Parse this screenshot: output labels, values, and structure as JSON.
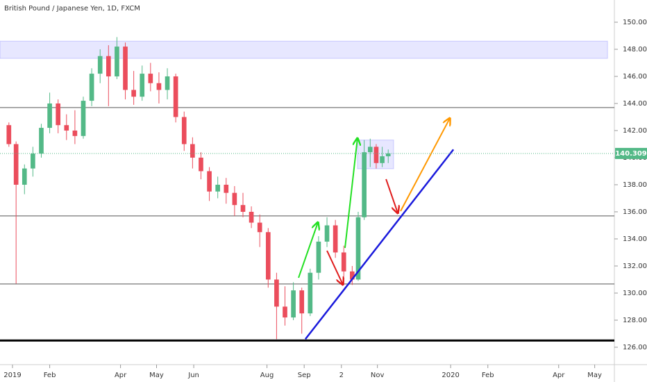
{
  "chart_data": {
    "type": "candlestick",
    "title": "British Pound / Japanese Yen, 1D, FXCM",
    "xlim": [
      -10.4,
      501.4
    ],
    "ylim": [
      124.87,
      151.64
    ],
    "xticks": [
      {
        "value": 0,
        "label": "2019"
      },
      {
        "value": 31,
        "label": "Feb"
      },
      {
        "value": 90,
        "label": "Apr"
      },
      {
        "value": 120,
        "label": "May"
      },
      {
        "value": 151,
        "label": "Jun"
      },
      {
        "value": 212,
        "label": "Aug"
      },
      {
        "value": 243,
        "label": "Sep"
      },
      {
        "value": 274,
        "label": "2"
      },
      {
        "value": 304,
        "label": "Nov"
      },
      {
        "value": 365,
        "label": "2020"
      },
      {
        "value": 396,
        "label": "Feb"
      },
      {
        "value": 455,
        "label": "Apr"
      },
      {
        "value": 485,
        "label": "May"
      }
    ],
    "yticks": [
      {
        "value": 126,
        "label": "126.000"
      },
      {
        "value": 128,
        "label": "128.000"
      },
      {
        "value": 130,
        "label": "130.000"
      },
      {
        "value": 132,
        "label": "132.000"
      },
      {
        "value": 134,
        "label": "134.000"
      },
      {
        "value": 136,
        "label": "136.000"
      },
      {
        "value": 138,
        "label": "138.000"
      },
      {
        "value": 140,
        "label": "140.000"
      },
      {
        "value": 142,
        "label": "142.000"
      },
      {
        "value": 144,
        "label": "144.000"
      },
      {
        "value": 146,
        "label": "146.000"
      },
      {
        "value": 148,
        "label": "148.000"
      },
      {
        "value": 150,
        "label": "150.000"
      }
    ],
    "up_color": "#53b987",
    "down_color": "#eb4d5c",
    "x": [
      -3,
      3,
      10,
      17,
      24,
      31,
      38,
      45,
      52,
      59,
      66,
      73,
      80,
      87,
      94,
      101,
      108,
      115,
      122,
      129,
      136,
      143,
      150,
      157,
      164,
      171,
      178,
      185,
      192,
      199,
      206,
      213,
      220,
      227,
      234,
      241,
      248,
      255,
      262,
      269,
      276,
      283,
      288,
      293,
      298,
      303,
      308,
      313
    ],
    "open": [
      142.4,
      141.0,
      138.0,
      139.2,
      140.3,
      142.2,
      144.0,
      142.4,
      142.0,
      141.6,
      144.2,
      146.2,
      147.5,
      146.0,
      148.2,
      145.0,
      144.5,
      146.2,
      145.5,
      145.0,
      146.0,
      143.0,
      141.0,
      140.0,
      139.0,
      137.5,
      138.0,
      137.4,
      136.5,
      136.0,
      135.2,
      134.5,
      131.0,
      129.0,
      128.2,
      130.2,
      128.5,
      131.5,
      133.8,
      135.0,
      133.0,
      131.6,
      131.0,
      135.6,
      140.4,
      140.8,
      139.6,
      140.1
    ],
    "high": [
      142.6,
      141.2,
      139.5,
      140.8,
      142.5,
      144.8,
      144.3,
      143.2,
      143.5,
      144.5,
      146.6,
      148.0,
      148.3,
      148.9,
      148.5,
      146.4,
      146.8,
      147.0,
      146.3,
      146.6,
      146.2,
      143.4,
      141.5,
      140.4,
      139.3,
      138.6,
      138.5,
      137.9,
      137.4,
      136.4,
      135.8,
      134.8,
      131.5,
      130.5,
      130.8,
      130.4,
      131.8,
      134.2,
      135.6,
      135.4,
      133.5,
      132.0,
      136.0,
      141.3,
      141.4,
      141.0,
      140.8,
      140.6
    ],
    "low": [
      140.8,
      130.7,
      137.3,
      138.6,
      140.0,
      141.8,
      141.8,
      141.3,
      141.0,
      141.4,
      143.8,
      145.5,
      143.8,
      145.8,
      144.3,
      143.9,
      144.2,
      144.9,
      144.0,
      144.3,
      142.6,
      140.5,
      139.2,
      138.4,
      136.8,
      137.0,
      136.6,
      135.7,
      135.6,
      134.8,
      133.4,
      130.4,
      126.6,
      127.6,
      128.0,
      127.0,
      128.3,
      131.0,
      133.4,
      132.6,
      131.2,
      130.6,
      130.9,
      135.4,
      139.3,
      139.2,
      139.3,
      139.6
    ],
    "close": [
      141.0,
      138.0,
      139.2,
      140.3,
      142.2,
      144.0,
      142.4,
      142.0,
      141.6,
      144.2,
      146.2,
      147.5,
      146.0,
      148.2,
      145.0,
      144.5,
      146.2,
      145.5,
      145.0,
      146.0,
      143.0,
      141.0,
      140.0,
      139.0,
      137.5,
      138.0,
      137.4,
      136.5,
      136.0,
      135.2,
      134.5,
      131.0,
      129.0,
      128.2,
      130.2,
      128.5,
      131.5,
      133.8,
      135.0,
      133.0,
      131.6,
      131.0,
      135.6,
      140.4,
      140.8,
      139.6,
      140.1,
      140.309
    ],
    "zones": [
      {
        "x": [
          -10.4,
          495.7
        ],
        "y": [
          147.33,
          148.6
        ]
      },
      {
        "x": [
          287.4,
          317.5
        ],
        "y": [
          139.18,
          141.3
        ]
      }
    ],
    "levels": [
      143.7,
      135.7,
      130.67
    ],
    "base_line": 126.5,
    "trendline": {
      "x": [
        244,
        367.3
      ],
      "y": [
        126.6,
        140.6
      ],
      "color": "#1a1adc"
    },
    "arrows": [
      {
        "x": [
          238.3,
          254.5
        ],
        "y": [
          131.13,
          135.23
        ],
        "color": "#22e022"
      },
      {
        "x": [
          277,
          287.4
        ],
        "y": [
          133.33,
          141.44
        ],
        "color": "#22e022"
      },
      {
        "x": [
          262,
          275.3
        ],
        "y": [
          133.13,
          130.62
        ],
        "color": "#e01c1c"
      },
      {
        "x": [
          311.2,
          321
        ],
        "y": [
          138.41,
          135.9
        ],
        "color": "#e01c1c"
      },
      {
        "x": [
          323.3,
          364.4
        ],
        "y": [
          136.05,
          142.92
        ],
        "color": "#ff9800"
      }
    ]
  }
}
